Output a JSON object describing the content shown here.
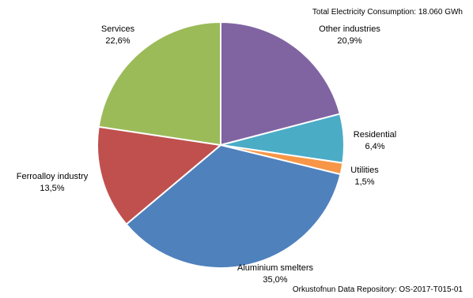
{
  "header_note": "Total Electricity Consumption: 18.060 GWh",
  "source_note": "Orkustofnun Data Repository: OS-2017-T015-01",
  "chart_data": {
    "type": "pie",
    "title": "",
    "slices": [
      {
        "name": "Other industries",
        "value": 20.9,
        "value_label": "20,9%",
        "color": "#8064A2"
      },
      {
        "name": "Residential",
        "value": 6.4,
        "value_label": "6,4%",
        "color": "#4BACC6"
      },
      {
        "name": "Utilities",
        "value": 1.5,
        "value_label": "1,5%",
        "color": "#F79646"
      },
      {
        "name": "Aluminium smelters",
        "value": 35.0,
        "value_label": "35,0%",
        "color": "#4F81BD"
      },
      {
        "name": "Ferroalloy industry",
        "value": 13.5,
        "value_label": "13,5%",
        "color": "#C0504D"
      },
      {
        "name": "Services",
        "value": 22.6,
        "value_label": "22,6%",
        "color": "#9BBB59"
      }
    ],
    "start_angle_deg": 0,
    "direction": "clockwise"
  }
}
